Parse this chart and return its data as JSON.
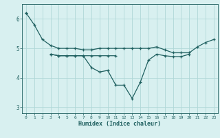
{
  "xlabel": "Humidex (Indice chaleur)",
  "x": [
    0,
    1,
    2,
    3,
    4,
    5,
    6,
    7,
    8,
    9,
    10,
    11,
    12,
    13,
    14,
    15,
    16,
    17,
    18,
    19,
    20,
    21,
    22,
    23
  ],
  "line1": [
    6.2,
    5.8,
    5.3,
    5.1,
    5.0,
    5.0,
    5.0,
    4.95,
    4.95,
    5.0,
    5.0,
    5.0,
    5.0,
    5.0,
    5.0,
    5.0,
    5.05,
    4.95,
    4.85,
    4.85,
    4.85,
    5.05,
    5.2,
    5.3
  ],
  "line2": [
    6.2,
    null,
    null,
    4.8,
    4.75,
    4.75,
    4.75,
    4.75,
    4.35,
    4.2,
    4.25,
    3.75,
    3.75,
    3.3,
    3.85,
    4.6,
    4.8,
    4.75,
    4.72,
    4.72,
    4.8,
    null,
    null,
    null
  ],
  "line3": [
    null,
    null,
    null,
    4.8,
    4.75,
    4.75,
    4.75,
    4.75,
    4.75,
    4.75,
    4.75,
    4.75,
    null,
    null,
    null,
    null,
    null,
    null,
    null,
    null,
    null,
    null,
    null,
    null
  ],
  "line_color": "#206060",
  "bg_color": "#d8f0f0",
  "grid_color": "#b0d8d8",
  "ylim": [
    2.8,
    6.5
  ],
  "yticks": [
    3,
    4,
    5,
    6
  ],
  "xticks": [
    0,
    1,
    2,
    3,
    4,
    5,
    6,
    7,
    8,
    9,
    10,
    11,
    12,
    13,
    14,
    15,
    16,
    17,
    18,
    19,
    20,
    21,
    22,
    23
  ]
}
